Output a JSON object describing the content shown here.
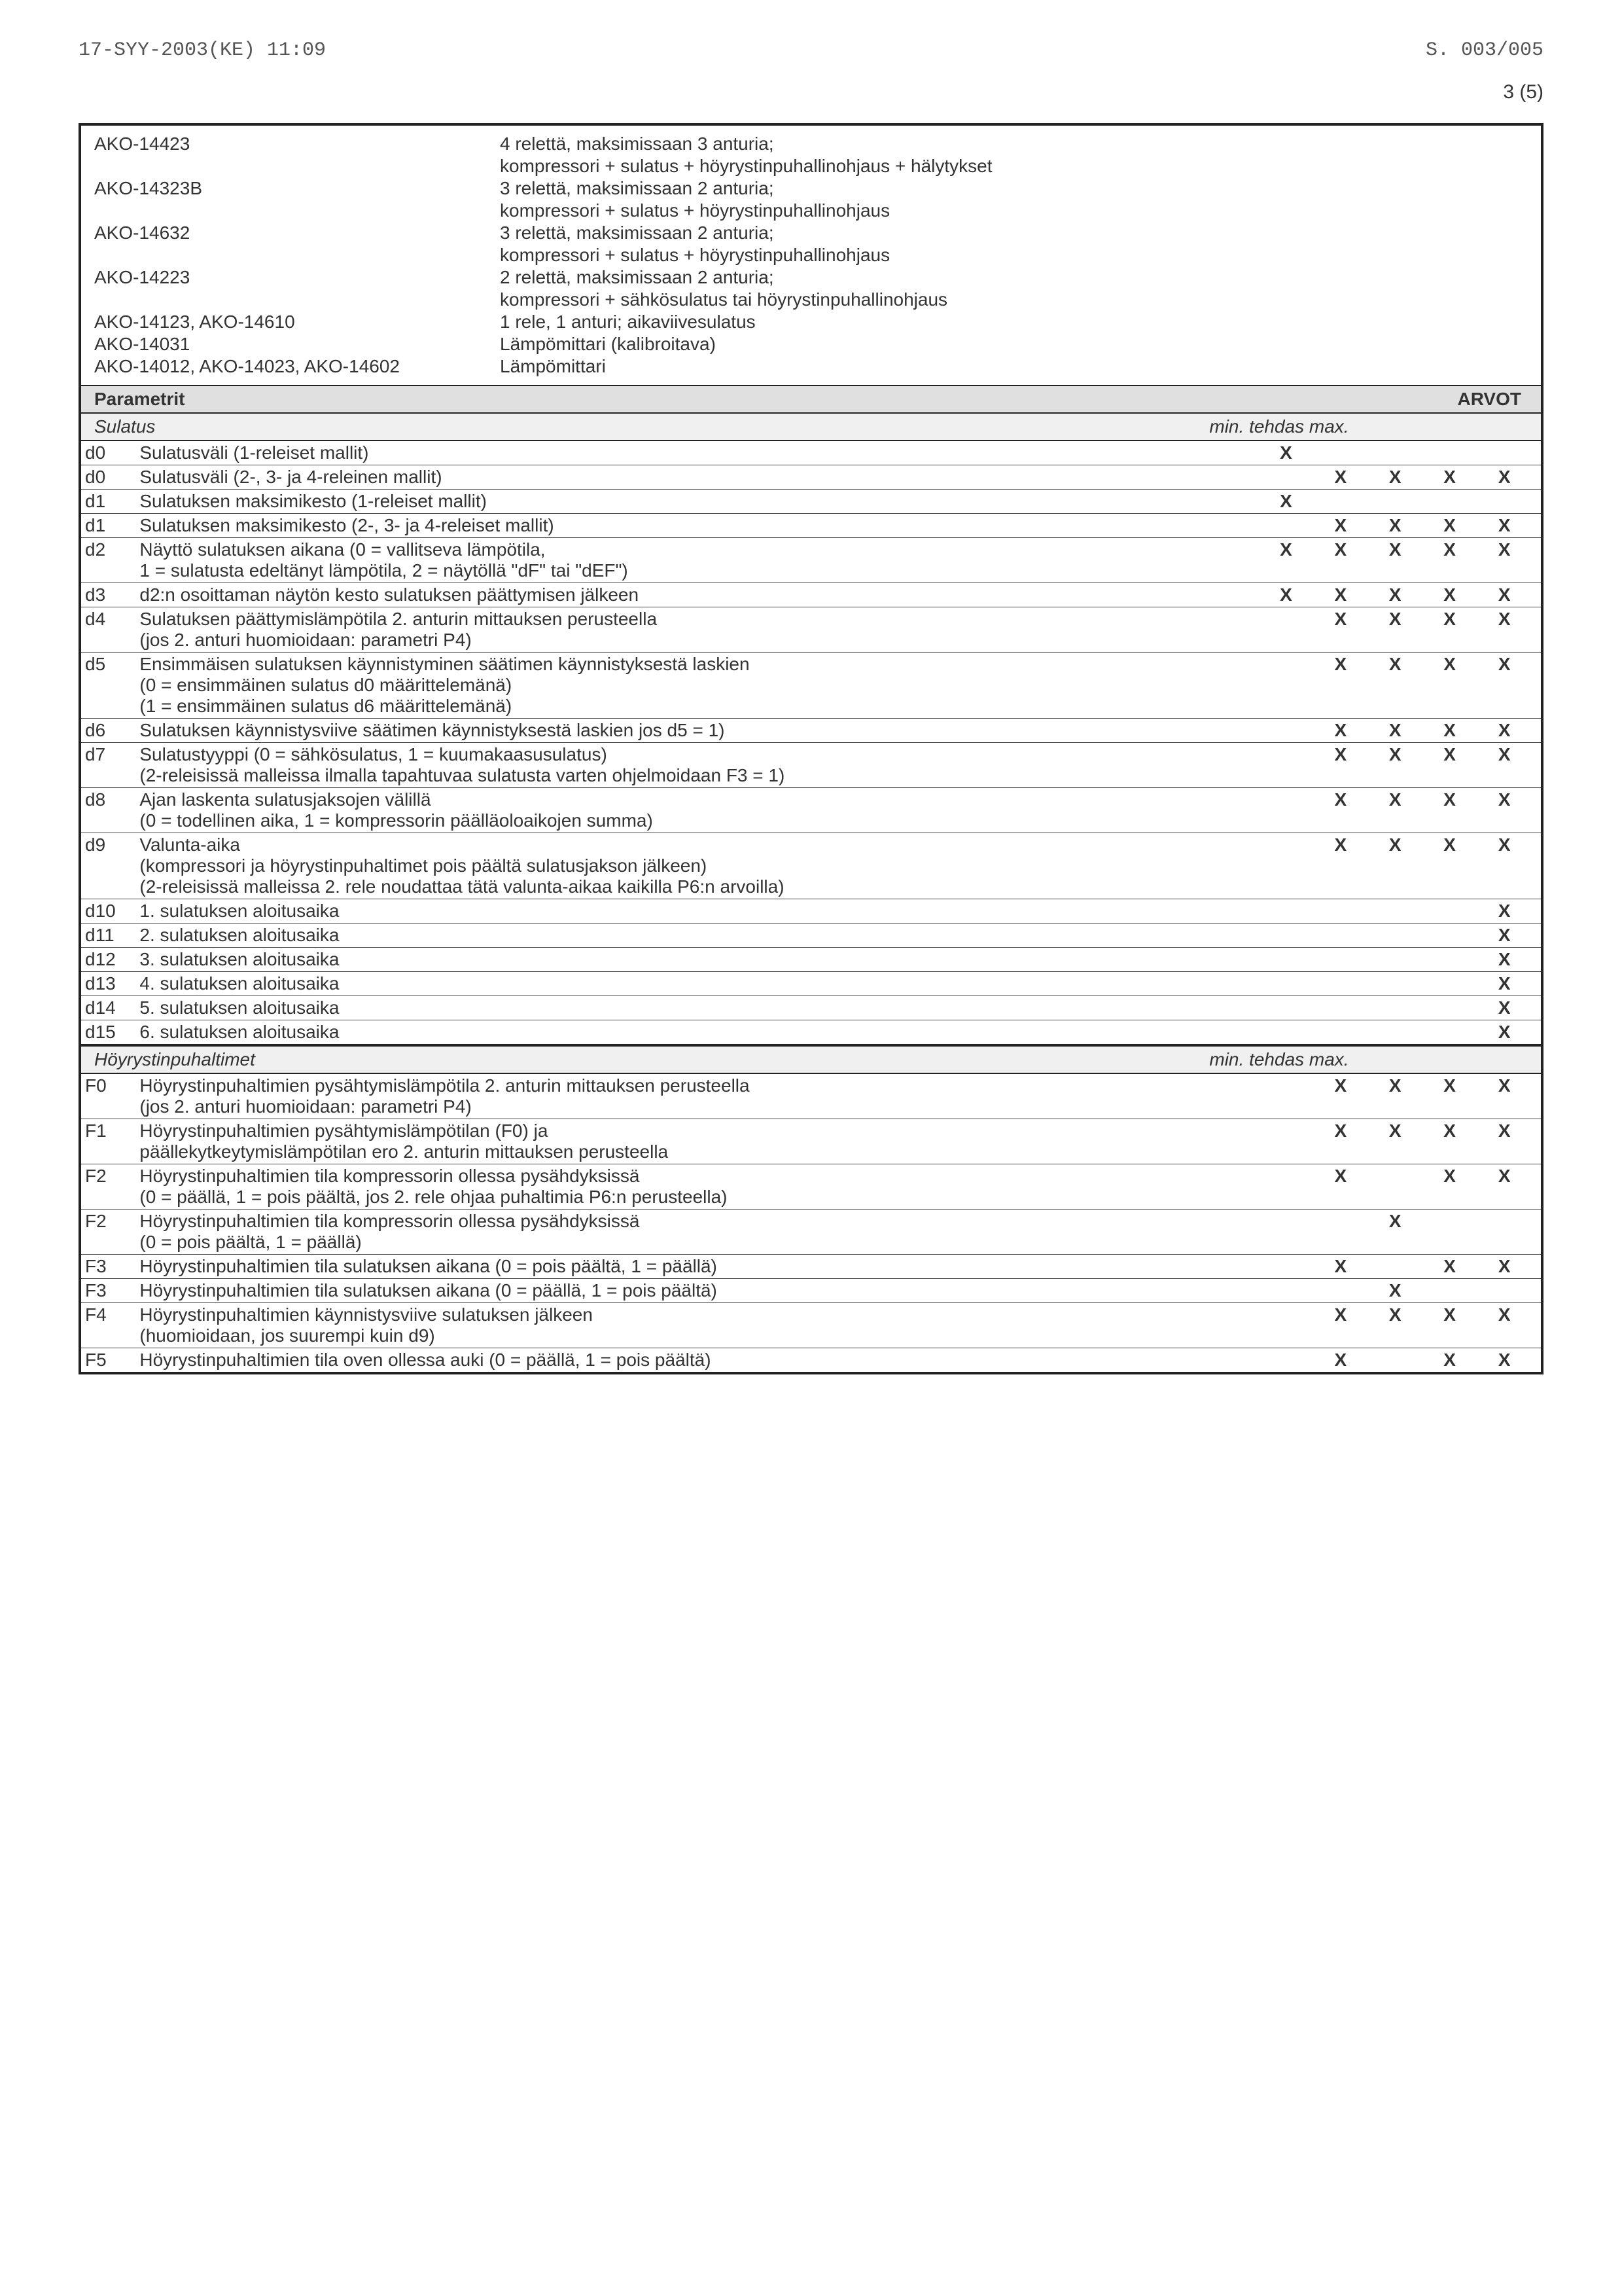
{
  "header": {
    "left": "17-SYY-2003(KE) 11:09",
    "right": "S. 003/005",
    "page": "3 (5)"
  },
  "products": [
    {
      "code": "AKO-14423",
      "lines": [
        "4 relettä, maksimissaan 3 anturia;",
        "kompressori + sulatus + höyrystinpuhallinohjaus + hälytykset"
      ]
    },
    {
      "code": "AKO-14323B",
      "lines": [
        "3 relettä, maksimissaan 2 anturia;",
        "kompressori + sulatus + höyrystinpuhallinohjaus"
      ]
    },
    {
      "code": "AKO-14632",
      "lines": [
        "3 relettä, maksimissaan 2 anturia;",
        "kompressori + sulatus + höyrystinpuhallinohjaus"
      ]
    },
    {
      "code": "AKO-14223",
      "lines": [
        "2 relettä, maksimissaan 2 anturia;",
        "kompressori + sähkösulatus tai höyrystinpuhallinohjaus"
      ]
    },
    {
      "code": "AKO-14123, AKO-14610",
      "lines": [
        "1 rele, 1 anturi; aikaviivesulatus"
      ]
    },
    {
      "code": "AKO-14031",
      "lines": [
        "Lämpömittari (kalibroitava)"
      ]
    },
    {
      "code": "AKO-14012, AKO-14023, AKO-14602",
      "lines": [
        "Lämpömittari"
      ]
    }
  ],
  "section_header": {
    "left": "Parametrit",
    "right": "ARVOT"
  },
  "sub_sulatus": {
    "left": "Sulatus",
    "right": "min.  tehdas  max."
  },
  "sub_fan": {
    "left": "Höyrystinpuhaltimet",
    "right": "min.  tehdas  max."
  },
  "rows_sulatus": [
    {
      "c": "d0",
      "d": "Sulatusväli (1-releiset mallit)",
      "x": [
        "X",
        "",
        "",
        "",
        ""
      ]
    },
    {
      "c": "d0",
      "d": "Sulatusväli (2-, 3- ja 4-releinen mallit)",
      "x": [
        "",
        "X",
        "X",
        "X",
        "X"
      ]
    },
    {
      "c": "d1",
      "d": "Sulatuksen maksimikesto (1-releiset mallit)",
      "x": [
        "X",
        "",
        "",
        "",
        ""
      ]
    },
    {
      "c": "d1",
      "d": "Sulatuksen maksimikesto (2-, 3- ja 4-releiset mallit)",
      "x": [
        "",
        "X",
        "X",
        "X",
        "X"
      ]
    },
    {
      "c": "d2",
      "d": "Näyttö sulatuksen aikana (0 = vallitseva lämpötila,\n1 = sulatusta edeltänyt lämpötila, 2 = näytöllä \"dF\" tai \"dEF\")",
      "x": [
        "X",
        "X",
        "X",
        "X",
        "X"
      ]
    },
    {
      "c": "d3",
      "d": "d2:n osoittaman näytön kesto sulatuksen päättymisen jälkeen",
      "x": [
        "X",
        "X",
        "X",
        "X",
        "X"
      ]
    },
    {
      "c": "d4",
      "d": "Sulatuksen päättymislämpötila 2. anturin mittauksen perusteella\n(jos 2. anturi huomioidaan: parametri P4)",
      "x": [
        "",
        "X",
        "X",
        "X",
        "X"
      ]
    },
    {
      "c": "d5",
      "d": "Ensimmäisen sulatuksen käynnistyminen säätimen käynnistyksestä laskien\n(0 = ensimmäinen sulatus d0 määrittelemänä)\n(1 = ensimmäinen sulatus d6 määrittelemänä)",
      "x": [
        "",
        "X",
        "X",
        "X",
        "X"
      ]
    },
    {
      "c": "d6",
      "d": "Sulatuksen käynnistysviive säätimen käynnistyksestä laskien jos d5 = 1)",
      "x": [
        "",
        "X",
        "X",
        "X",
        "X"
      ]
    },
    {
      "c": "d7",
      "d": "Sulatustyyppi (0 = sähkösulatus, 1 = kuumakaasusulatus)\n(2-releisissä malleissa ilmalla tapahtuvaa sulatusta varten ohjelmoidaan F3 = 1)",
      "x": [
        "",
        "X",
        "X",
        "X",
        "X"
      ]
    },
    {
      "c": "d8",
      "d": "Ajan laskenta sulatusjaksojen välillä\n(0 = todellinen aika, 1 = kompressorin päälläoloaikojen summa)",
      "x": [
        "",
        "X",
        "X",
        "X",
        "X"
      ]
    },
    {
      "c": "d9",
      "d": "Valunta-aika\n(kompressori ja höyrystinpuhaltimet pois päältä sulatusjakson jälkeen)\n(2-releisissä malleissa 2. rele noudattaa tätä valunta-aikaa kaikilla P6:n arvoilla)",
      "x": [
        "",
        "X",
        "X",
        "X",
        "X"
      ]
    },
    {
      "c": "d10",
      "d": "1. sulatuksen aloitusaika",
      "x": [
        "",
        "",
        "",
        "",
        "X"
      ]
    },
    {
      "c": "d11",
      "d": "2. sulatuksen aloitusaika",
      "x": [
        "",
        "",
        "",
        "",
        "X"
      ]
    },
    {
      "c": "d12",
      "d": "3. sulatuksen aloitusaika",
      "x": [
        "",
        "",
        "",
        "",
        "X"
      ]
    },
    {
      "c": "d13",
      "d": "4. sulatuksen aloitusaika",
      "x": [
        "",
        "",
        "",
        "",
        "X"
      ]
    },
    {
      "c": "d14",
      "d": "5. sulatuksen aloitusaika",
      "x": [
        "",
        "",
        "",
        "",
        "X"
      ]
    },
    {
      "c": "d15",
      "d": "6. sulatuksen aloitusaika",
      "x": [
        "",
        "",
        "",
        "",
        "X"
      ]
    }
  ],
  "rows_fan": [
    {
      "c": "F0",
      "d": "Höyrystinpuhaltimien pysähtymislämpötila 2. anturin mittauksen perusteella\n(jos 2. anturi huomioidaan: parametri P4)",
      "x": [
        "",
        "X",
        "X",
        "X",
        "X"
      ]
    },
    {
      "c": "F1",
      "d": "Höyrystinpuhaltimien pysähtymislämpötilan (F0) ja\npäällekytkeytymislämpötilan ero 2. anturin mittauksen perusteella",
      "x": [
        "",
        "X",
        "X",
        "X",
        "X"
      ]
    },
    {
      "c": "F2",
      "d": "Höyrystinpuhaltimien tila kompressorin ollessa pysähdyksissä\n(0 = päällä, 1 = pois päältä, jos 2. rele ohjaa puhaltimia P6:n perusteella)",
      "x": [
        "",
        "X",
        "",
        "X",
        "X"
      ]
    },
    {
      "c": "F2",
      "d": "Höyrystinpuhaltimien tila kompressorin ollessa pysähdyksissä\n(0 = pois päältä, 1 = päällä)",
      "x": [
        "",
        "",
        "X",
        "",
        ""
      ]
    },
    {
      "c": "F3",
      "d": "Höyrystinpuhaltimien tila sulatuksen aikana (0 = pois päältä, 1 = päällä)",
      "x": [
        "",
        "X",
        "",
        "X",
        "X"
      ]
    },
    {
      "c": "F3",
      "d": "Höyrystinpuhaltimien tila sulatuksen aikana (0 = päällä, 1 = pois päältä)",
      "x": [
        "",
        "",
        "X",
        "",
        ""
      ]
    },
    {
      "c": "F4",
      "d": "Höyrystinpuhaltimien käynnistysviive sulatuksen jälkeen\n(huomioidaan, jos suurempi kuin d9)",
      "x": [
        "",
        "X",
        "X",
        "X",
        "X"
      ]
    },
    {
      "c": "F5",
      "d": "Höyrystinpuhaltimien tila oven ollessa auki (0 = päällä, 1 = pois päältä)",
      "x": [
        "",
        "X",
        "",
        "X",
        "X"
      ]
    }
  ]
}
